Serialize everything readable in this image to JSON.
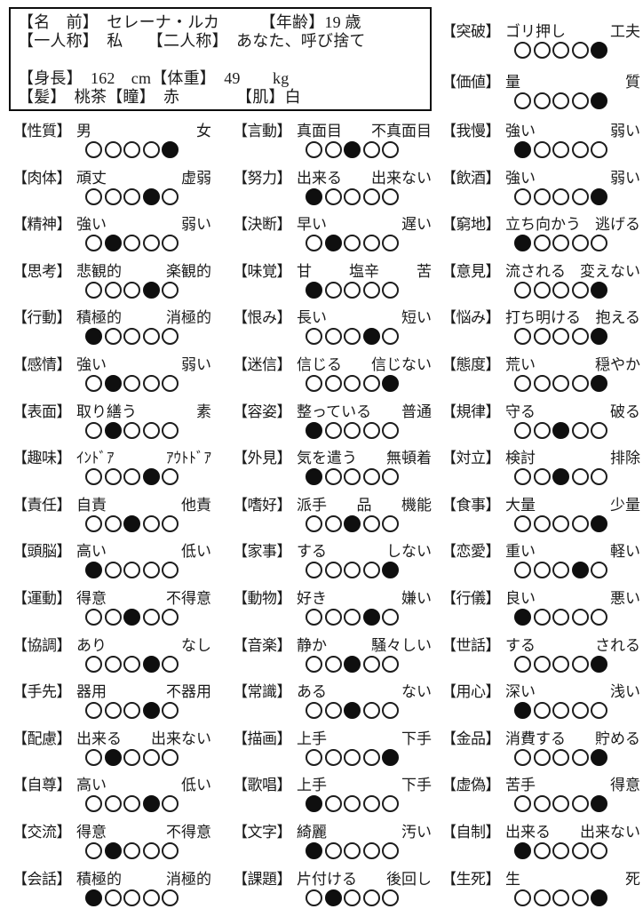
{
  "page": {
    "background": "#ffffff",
    "text_color": "#1b1b1b",
    "dot_filled_color": "#0f0f0f",
    "dot_outline_color": "#1d1d1d"
  },
  "header": {
    "lines": [
      "【名　前】　セレーナ・ルカ　　　【年齢】19 歳",
      "【一人称】　私　　【二人称】　あなた、呼び捨て",
      "",
      "【身長】　162　cm【体重】　49　　kg",
      "【髪】　桃茶【瞳】　赤　　　　【肌】白"
    ]
  },
  "scale": {
    "levels": 5,
    "filled_icon": "black-circle",
    "empty_icon": "white-circle"
  },
  "columns": {
    "right_top": [
      {
        "label": "【突破】",
        "words": [
          "ゴリ押し",
          "工夫"
        ],
        "selected": 5
      },
      {
        "label": "【価値】",
        "words": [
          "量",
          "質"
        ],
        "selected": 5
      }
    ],
    "left": [
      {
        "label": "【性質】",
        "words": [
          "男",
          "女"
        ],
        "selected": 5
      },
      {
        "label": "【肉体】",
        "words": [
          "頑丈",
          "虚弱"
        ],
        "selected": 4
      },
      {
        "label": "【精神】",
        "words": [
          "強い",
          "弱い"
        ],
        "selected": 2
      },
      {
        "label": "【思考】",
        "words": [
          "悲観的",
          "楽観的"
        ],
        "selected": 4
      },
      {
        "label": "【行動】",
        "words": [
          "積極的",
          "消極的"
        ],
        "selected": 1
      },
      {
        "label": "【感情】",
        "words": [
          "強い",
          "弱い"
        ],
        "selected": 2
      },
      {
        "label": "【表面】",
        "words": [
          "取り繕う",
          "素"
        ],
        "selected": 2
      },
      {
        "label": "【趣味】",
        "words": [
          "ｲﾝﾄﾞｱ",
          "ｱｳﾄﾄﾞｱ"
        ],
        "selected": 4
      },
      {
        "label": "【責任】",
        "words": [
          "自責",
          "他責"
        ],
        "selected": 3
      },
      {
        "label": "【頭脳】",
        "words": [
          "高い",
          "低い"
        ],
        "selected": 1
      },
      {
        "label": "【運動】",
        "words": [
          "得意",
          "不得意"
        ],
        "selected": 3
      },
      {
        "label": "【協調】",
        "words": [
          "あり",
          "なし"
        ],
        "selected": 4
      },
      {
        "label": "【手先】",
        "words": [
          "器用",
          "不器用"
        ],
        "selected": 4
      },
      {
        "label": "【配慮】",
        "words": [
          "出来る",
          "出来ない"
        ],
        "selected": 2
      },
      {
        "label": "【自尊】",
        "words": [
          "高い",
          "低い"
        ],
        "selected": 4
      },
      {
        "label": "【交流】",
        "words": [
          "得意",
          "不得意"
        ],
        "selected": 2
      },
      {
        "label": "【会話】",
        "words": [
          "積極的",
          "消極的"
        ],
        "selected": 1
      }
    ],
    "middle": [
      {
        "label": "【言動】",
        "words": [
          "真面目",
          "不真面目"
        ],
        "selected": 3
      },
      {
        "label": "【努力】",
        "words": [
          "出来る",
          "出来ない"
        ],
        "selected": 1
      },
      {
        "label": "【決断】",
        "words": [
          "早い",
          "遅い"
        ],
        "selected": 2
      },
      {
        "label": "【味覚】",
        "words": [
          "甘",
          "塩辛",
          "苦"
        ],
        "selected": 1
      },
      {
        "label": "【恨み】",
        "words": [
          "長い",
          "短い"
        ],
        "selected": 4
      },
      {
        "label": "【迷信】",
        "words": [
          "信じる",
          "信じない"
        ],
        "selected": 5
      },
      {
        "label": "【容姿】",
        "words": [
          "整っている",
          "普通"
        ],
        "selected": 1
      },
      {
        "label": "【外見】",
        "words": [
          "気を遣う",
          "無頓着"
        ],
        "selected": 1
      },
      {
        "label": "【嗜好】",
        "words": [
          "派手",
          "品",
          "機能"
        ],
        "selected": 3
      },
      {
        "label": "【家事】",
        "words": [
          "する",
          "しない"
        ],
        "selected": 5
      },
      {
        "label": "【動物】",
        "words": [
          "好き",
          "嫌い"
        ],
        "selected": 4
      },
      {
        "label": "【音楽】",
        "words": [
          "静か",
          "騒々しい"
        ],
        "selected": 3
      },
      {
        "label": "【常識】",
        "words": [
          "ある",
          "ない"
        ],
        "selected": 3
      },
      {
        "label": "【描画】",
        "words": [
          "上手",
          "下手"
        ],
        "selected": 5
      },
      {
        "label": "【歌唱】",
        "words": [
          "上手",
          "下手"
        ],
        "selected": 1
      },
      {
        "label": "【文字】",
        "words": [
          "綺麗",
          "汚い"
        ],
        "selected": 1
      },
      {
        "label": "【課題】",
        "words": [
          "片付ける",
          "後回し"
        ],
        "selected": 2
      }
    ],
    "right": [
      {
        "label": "【我慢】",
        "words": [
          "強い",
          "弱い"
        ],
        "selected": 1
      },
      {
        "label": "【飲酒】",
        "words": [
          "強い",
          "弱い"
        ],
        "selected": 5
      },
      {
        "label": "【窮地】",
        "words": [
          "立ち向かう",
          "逃げる"
        ],
        "selected": 1
      },
      {
        "label": "【意見】",
        "words": [
          "流される",
          "変えない"
        ],
        "selected": 5
      },
      {
        "label": "【悩み】",
        "words": [
          "打ち明ける",
          "抱える"
        ],
        "selected": 5
      },
      {
        "label": "【態度】",
        "words": [
          "荒い",
          "穏やか"
        ],
        "selected": 5
      },
      {
        "label": "【規律】",
        "words": [
          "守る",
          "破る"
        ],
        "selected": 3
      },
      {
        "label": "【対立】",
        "words": [
          "検討",
          "排除"
        ],
        "selected": 3
      },
      {
        "label": "【食事】",
        "words": [
          "大量",
          "少量"
        ],
        "selected": 5
      },
      {
        "label": "【恋愛】",
        "words": [
          "重い",
          "軽い"
        ],
        "selected": 4
      },
      {
        "label": "【行儀】",
        "words": [
          "良い",
          "悪い"
        ],
        "selected": 1
      },
      {
        "label": "【世話】",
        "words": [
          "する",
          "される"
        ],
        "selected": 5
      },
      {
        "label": "【用心】",
        "words": [
          "深い",
          "浅い"
        ],
        "selected": 1
      },
      {
        "label": "【金品】",
        "words": [
          "消費する",
          "貯める"
        ],
        "selected": 5
      },
      {
        "label": "【虚偽】",
        "words": [
          "苦手",
          "得意"
        ],
        "selected": 5
      },
      {
        "label": "【自制】",
        "words": [
          "出来る",
          "出来ない"
        ],
        "selected": 1
      },
      {
        "label": "【生死】",
        "words": [
          "生",
          "死"
        ],
        "selected": 5
      }
    ]
  }
}
